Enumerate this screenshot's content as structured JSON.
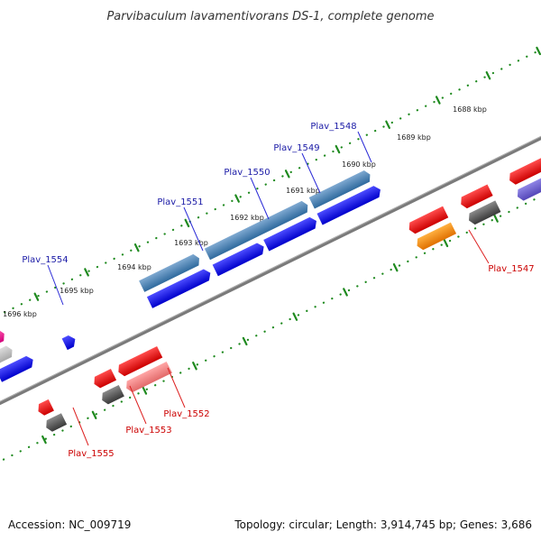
{
  "title": "Parvibaculum lavamentivorans DS-1, complete genome",
  "accession": "Accession: NC_009719",
  "topology": "Topology: circular; Length: 3,914,745 bp; Genes: 3,686",
  "kbp_labels": [
    "1688 kbp",
    "1689 kbp",
    "1690 kbp",
    "1691 kbp",
    "1692 kbp",
    "1693 kbp",
    "1694 kbp",
    "1695 kbp",
    "1696 kbp"
  ],
  "forward_gene_labels": [
    "Plav_1548",
    "Plav_1549",
    "Plav_1550",
    "Plav_1551",
    "Plav_1554"
  ],
  "reverse_gene_labels": [
    "Plav_1547",
    "Plav_1552",
    "Plav_1553",
    "Plav_1555"
  ],
  "colors": {
    "forward_cds": "#0000ff",
    "forward_gene": "#4682b4",
    "reverse_cds": "#ff0000",
    "reverse_gene_grey": "#555555",
    "pseudo_pink": "#f08080",
    "orange": "#ff8c00",
    "magenta": "#ff1493",
    "purple": "#6a5acd",
    "backbone": "#808080",
    "ruler": "#1f8a1f"
  }
}
